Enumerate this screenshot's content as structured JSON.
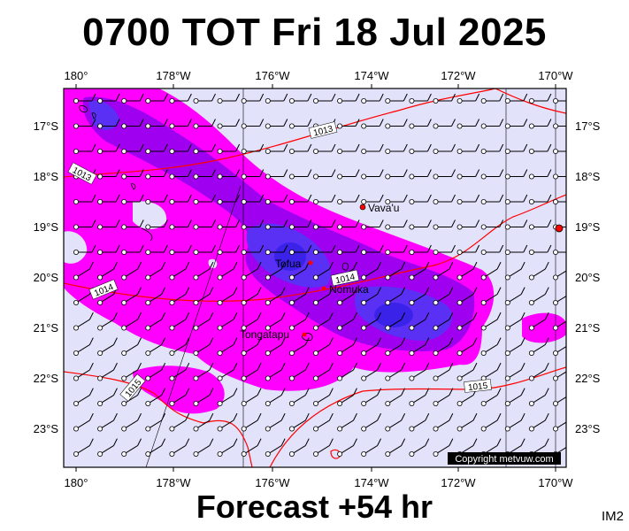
{
  "title": "0700 TOT Fri 18 Jul 2025",
  "forecast_label": "Forecast +54 hr",
  "image_code": "IM2",
  "copyright": "Copyright metvuw.com",
  "longitude_labels": [
    "180°",
    "178°W",
    "176°W",
    "174°W",
    "172°W",
    "170°W"
  ],
  "latitude_labels": [
    "17°S",
    "18°S",
    "19°S",
    "20°S",
    "21°S",
    "22°S",
    "23°S"
  ],
  "places": [
    {
      "name": "Vava'u"
    },
    {
      "name": "Tofua"
    },
    {
      "name": "Nomuka"
    },
    {
      "name": "Tongatapu"
    }
  ],
  "isobar_labels": [
    "1013",
    "1013",
    "1014",
    "1014",
    "1015",
    "1015"
  ],
  "colors": {
    "background": "#e2e2fb",
    "rain_light": "#ff00ff",
    "rain_mid": "#a000f0",
    "rain_heavy": "#4b2cf5",
    "isobar": "#ff0000",
    "place_marker": "#ff0000"
  }
}
